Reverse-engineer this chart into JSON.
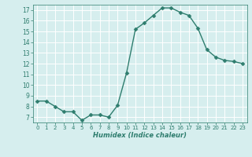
{
  "x": [
    0,
    1,
    2,
    3,
    4,
    5,
    6,
    7,
    8,
    9,
    10,
    11,
    12,
    13,
    14,
    15,
    16,
    17,
    18,
    19,
    20,
    21,
    22,
    23
  ],
  "y": [
    8.5,
    8.5,
    8.0,
    7.5,
    7.5,
    6.7,
    7.2,
    7.2,
    7.0,
    8.1,
    11.1,
    15.2,
    15.8,
    16.5,
    17.2,
    17.2,
    16.8,
    16.5,
    15.3,
    13.3,
    12.6,
    12.3,
    12.2,
    12.0
  ],
  "line_color": "#2e7d6e",
  "marker": "D",
  "marker_size": 2.5,
  "line_width": 1.0,
  "xlabel": "Humidex (Indice chaleur)",
  "xlim": [
    -0.5,
    23.5
  ],
  "ylim": [
    6.5,
    17.5
  ],
  "yticks": [
    7,
    8,
    9,
    10,
    11,
    12,
    13,
    14,
    15,
    16,
    17
  ],
  "xticks": [
    0,
    1,
    2,
    3,
    4,
    5,
    6,
    7,
    8,
    9,
    10,
    11,
    12,
    13,
    14,
    15,
    16,
    17,
    18,
    19,
    20,
    21,
    22,
    23
  ],
  "xtick_labels": [
    "0",
    "1",
    "2",
    "3",
    "4",
    "5",
    "6",
    "7",
    "8",
    "9",
    "10",
    "11",
    "12",
    "13",
    "14",
    "15",
    "16",
    "17",
    "18",
    "19",
    "20",
    "21",
    "22",
    "23"
  ],
  "background_color": "#d6eeee",
  "grid_color": "#b8d8d8",
  "text_color": "#2e7d6e"
}
